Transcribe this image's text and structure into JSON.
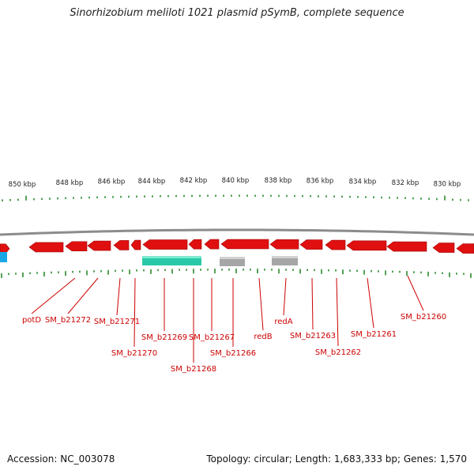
{
  "title": "Sinorhizobium meliloti 1021 plasmid pSymB, complete sequence",
  "footer": {
    "accession": "Accession: NC_003078",
    "summary": "Topology: circular; Length: 1,683,333 bp; Genes: 1,570"
  },
  "colors": {
    "gene": "#e01010",
    "gene_dark": "#a00000",
    "backbone": "#8c8c8c",
    "tick": "#2a8a2a",
    "cyan_feature": "#29c9a7",
    "gray_feature": "#a6a6a6",
    "blue_feature": "#18a8e8",
    "label": "#cc0000"
  },
  "scale_labels": [
    "850 kbp",
    "848 kbp",
    "846 kbp",
    "844 kbp",
    "842 kbp",
    "840 kbp",
    "838 kbp",
    "836 kbp",
    "834 kbp",
    "832 kbp",
    "830 kbp"
  ],
  "genes": [
    {
      "label": "potD"
    },
    {
      "label": "SM_b21272"
    },
    {
      "label": "SM_b21271"
    },
    {
      "label": "SM_b21270"
    },
    {
      "label": "SM_b21269"
    },
    {
      "label": "SM_b21268"
    },
    {
      "label": "SM_b21267"
    },
    {
      "label": "SM_b21266"
    },
    {
      "label": "redB"
    },
    {
      "label": "redA"
    },
    {
      "label": "SM_b21263"
    },
    {
      "label": "SM_b21262"
    },
    {
      "label": "SM_b21261"
    },
    {
      "label": "SM_b21260"
    }
  ]
}
